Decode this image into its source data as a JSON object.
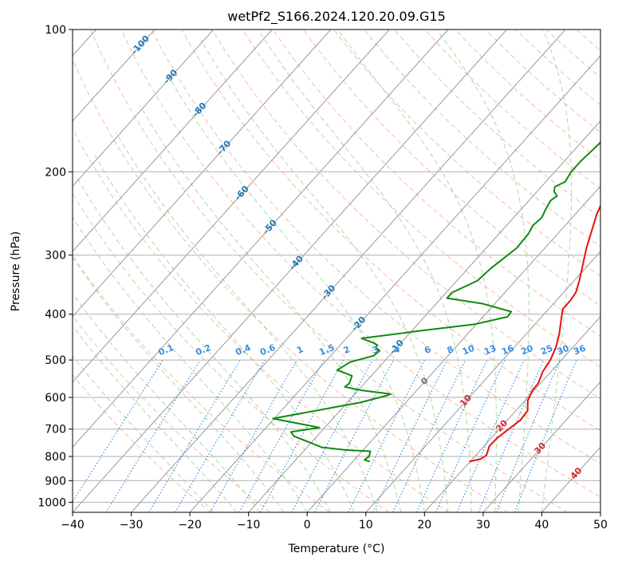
{
  "chart_data": {
    "type": "line",
    "title": "wetPf2_S166.2024.120.20.09.G15",
    "xlabel": "Temperature (°C)",
    "ylabel": "Pressure (hPa)",
    "xlim": [
      -40,
      50
    ],
    "ylim": [
      1050,
      100
    ],
    "y_scale": "log",
    "grid": true,
    "x_ticks": [
      "−40",
      "−30",
      "−20",
      "−10",
      "0",
      "10",
      "20",
      "30",
      "40",
      "50"
    ],
    "x_tick_values": [
      -40,
      -30,
      -20,
      -10,
      0,
      10,
      20,
      30,
      40,
      50
    ],
    "y_ticks": [
      "100",
      "200",
      "300",
      "400",
      "500",
      "600",
      "700",
      "800",
      "900",
      "1000"
    ],
    "y_tick_values": [
      100,
      200,
      300,
      400,
      500,
      600,
      700,
      800,
      900,
      1000
    ],
    "colors": {
      "temperature": "#e8100c",
      "dewpoint": "#108a10",
      "isotherm": "#999999",
      "dry_adiabat": "#f4a582",
      "moist_adiabat": "#9fd09f",
      "mixing_ratio": "#3a8ee0",
      "dry_label": "#d62728",
      "isotherm_label": "#1f77b4"
    },
    "series": [
      {
        "x": [
          19.9,
          21.4,
          21.8,
          20.9,
          21.0,
          21.5,
          22.2,
          22.0,
          20.5,
          19.7,
          19.6,
          18.6,
          18.1,
          17.1,
          15.6,
          13.7,
          12.4,
          12.4,
          12.1,
          10.9,
          7.1,
          3.6,
          2.1,
          1.2,
          0.6,
          0.6,
          0.9,
          2.1,
          3.9,
          5.6,
          7.7,
          9.8,
          10.4,
          11.7,
          12.3,
          12.7,
          12.7
        ],
        "y": [
          820,
          810,
          795,
          760,
          730,
          705,
          670,
          640,
          610,
          580,
          560,
          530,
          500,
          470,
          440,
          410,
          390,
          375,
          360,
          340,
          290,
          245,
          222,
          205,
          195,
          190,
          184,
          176,
          168,
          161,
          152,
          140,
          130,
          121,
          115,
          105,
          100
        ]
      },
      {
        "x": [
          2.9,
          1.7,
          2.0,
          1.4,
          -3.0,
          -7.5,
          -10.6,
          -13.9,
          -15.1,
          -10.9,
          -20.2,
          -11.7,
          -7.8,
          -4.4,
          -3.9,
          -9.3,
          -12.8,
          -12.6,
          -13.3,
          -16.7,
          -15.7,
          -12.7,
          -12.4,
          -13.6,
          -13.7,
          -14.7,
          -17.4,
          -9.3,
          -0.2,
          4.2,
          4.0,
          -2.1,
          -9.0,
          -9.0,
          -6.5,
          -6.1,
          -4.8,
          -5.0,
          -5.5,
          -5.2,
          -5.8,
          -6.3,
          -5.9,
          -7.1,
          -7.7,
          -6.7,
          -7.2,
          -7.2,
          -6.9,
          -6.6,
          -7.3,
          -7.6,
          -7.3,
          -7.3,
          -5.3,
          -3.7,
          1.2
        ],
        "y": [
          820,
          813,
          800,
          780,
          775,
          765,
          745,
          725,
          710,
          695,
          665,
          630,
          615,
          595,
          590,
          580,
          570,
          560,
          540,
          525,
          505,
          490,
          478,
          470,
          465,
          460,
          450,
          435,
          420,
          405,
          395,
          380,
          370,
          360,
          340,
          320,
          290,
          270,
          260,
          250,
          240,
          230,
          225,
          220,
          215,
          210,
          200,
          190,
          180,
          170,
          160,
          150,
          140,
          130,
          120,
          110,
          100
        ]
      }
    ],
    "isotherm_labels": [
      "-100",
      "-90",
      "-80",
      "-70",
      "-60",
      "-50",
      "-40",
      "-30",
      "-20",
      "-10",
      "0"
    ],
    "dry_adiabat_labels": [
      "10",
      "20",
      "30",
      "40"
    ],
    "mixing_ratio_labels": [
      "0.1",
      "0.2",
      "0.4",
      "0.6",
      "1",
      "1.5",
      "2",
      "3",
      "4",
      "6",
      "8",
      "10",
      "13",
      "16",
      "20",
      "25",
      "30",
      "36"
    ],
    "mixing_ratio_values": [
      0.1,
      0.2,
      0.4,
      0.6,
      1,
      1.5,
      2,
      3,
      4,
      6,
      8,
      10,
      13,
      16,
      20,
      25,
      30,
      36
    ]
  }
}
